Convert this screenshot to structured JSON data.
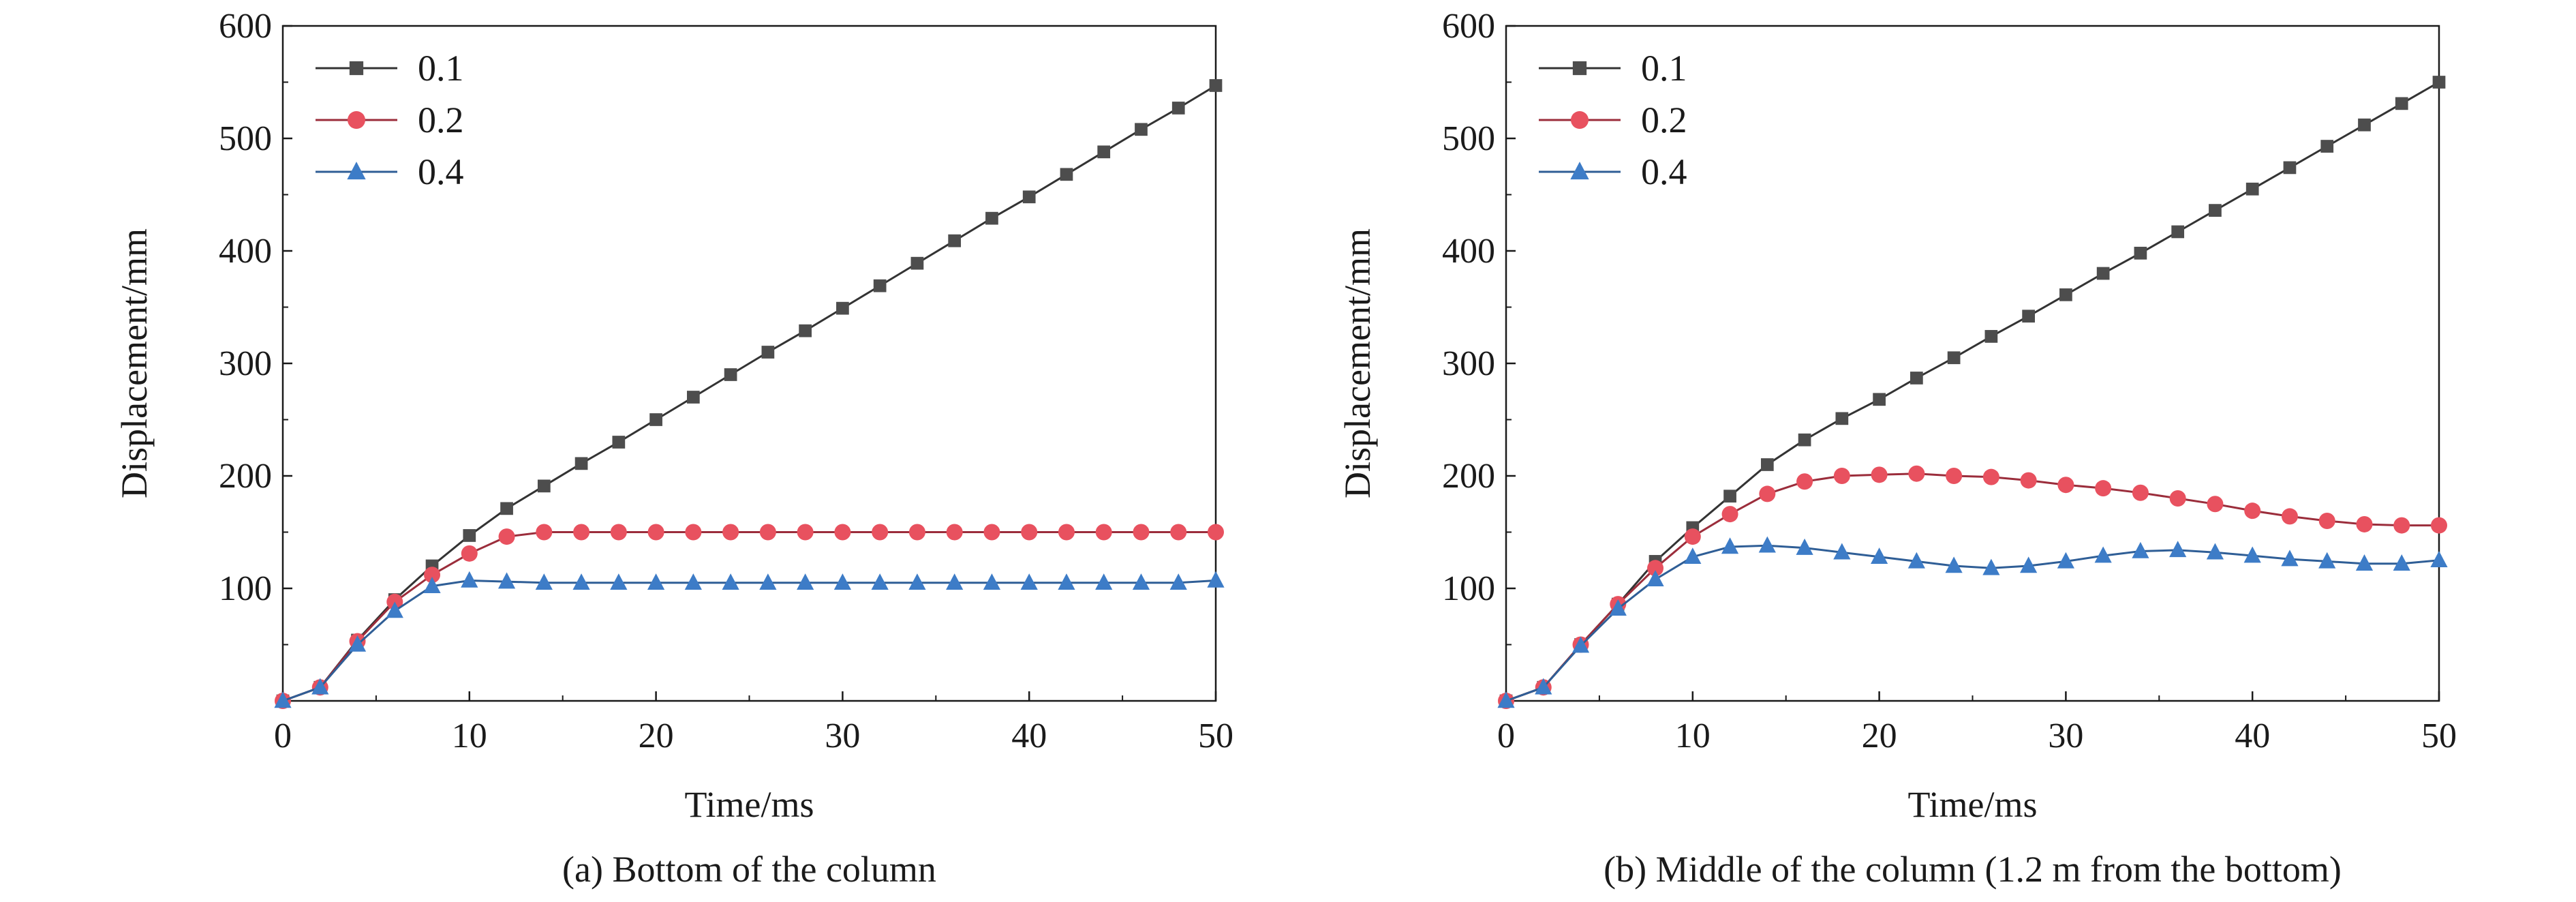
{
  "chart_data": [
    {
      "type": "line",
      "caption": "(a) Bottom of the column",
      "xlabel": "Time/ms",
      "ylabel": "Displacement/mm",
      "xlim": [
        0,
        50
      ],
      "ylim": [
        0,
        600
      ],
      "xticks": [
        0,
        10,
        20,
        30,
        40,
        50
      ],
      "yticks": [
        100,
        200,
        300,
        400,
        500,
        600
      ],
      "grid": false,
      "legend_position": "top-left",
      "series": [
        {
          "name": "0.1",
          "marker": "square",
          "color": "#4d4d4d",
          "line_color": "#333333",
          "x": [
            0,
            2,
            4,
            6,
            8,
            10,
            12,
            14,
            16,
            18,
            20,
            22,
            24,
            26,
            28,
            30,
            32,
            34,
            36,
            38,
            40,
            42,
            44,
            46,
            48,
            50
          ],
          "y": [
            0,
            12,
            54,
            90,
            120,
            147,
            171,
            191,
            211,
            230,
            250,
            270,
            290,
            310,
            329,
            349,
            369,
            389,
            409,
            429,
            448,
            468,
            488,
            508,
            527,
            547
          ]
        },
        {
          "name": "0.2",
          "marker": "circle",
          "color": "#e8515f",
          "line_color": "#9b2d3b",
          "x": [
            0,
            2,
            4,
            6,
            8,
            10,
            12,
            14,
            16,
            18,
            20,
            22,
            24,
            26,
            28,
            30,
            32,
            34,
            36,
            38,
            40,
            42,
            44,
            46,
            48,
            50
          ],
          "y": [
            0,
            12,
            53,
            88,
            112,
            131,
            146,
            150,
            150,
            150,
            150,
            150,
            150,
            150,
            150,
            150,
            150,
            150,
            150,
            150,
            150,
            150,
            150,
            150,
            150,
            150
          ]
        },
        {
          "name": "0.4",
          "marker": "triangle",
          "color": "#3d7cc7",
          "line_color": "#2f5e96",
          "x": [
            0,
            2,
            4,
            6,
            8,
            10,
            12,
            14,
            16,
            18,
            20,
            22,
            24,
            26,
            28,
            30,
            32,
            34,
            36,
            38,
            40,
            42,
            44,
            46,
            48,
            50
          ],
          "y": [
            0,
            12,
            50,
            80,
            102,
            107,
            106,
            105,
            105,
            105,
            105,
            105,
            105,
            105,
            105,
            105,
            105,
            105,
            105,
            105,
            105,
            105,
            105,
            105,
            105,
            107
          ]
        }
      ]
    },
    {
      "type": "line",
      "caption": "(b) Middle of the column (1.2 m from the bottom)",
      "xlabel": "Time/ms",
      "ylabel": "Displacement/mm",
      "xlim": [
        0,
        50
      ],
      "ylim": [
        0,
        600
      ],
      "xticks": [
        0,
        10,
        20,
        30,
        40,
        50
      ],
      "yticks": [
        100,
        200,
        300,
        400,
        500,
        600
      ],
      "grid": false,
      "legend_position": "top-left",
      "series": [
        {
          "name": "0.1",
          "marker": "square",
          "color": "#4d4d4d",
          "line_color": "#333333",
          "x": [
            0,
            2,
            4,
            6,
            8,
            10,
            12,
            14,
            16,
            18,
            20,
            22,
            24,
            26,
            28,
            30,
            32,
            34,
            36,
            38,
            40,
            42,
            44,
            46,
            48,
            50
          ],
          "y": [
            0,
            12,
            50,
            86,
            124,
            154,
            182,
            210,
            232,
            251,
            268,
            287,
            305,
            324,
            342,
            361,
            380,
            398,
            417,
            436,
            455,
            474,
            493,
            512,
            531,
            550
          ]
        },
        {
          "name": "0.2",
          "marker": "circle",
          "color": "#e8515f",
          "line_color": "#9b2d3b",
          "x": [
            0,
            2,
            4,
            6,
            8,
            10,
            12,
            14,
            16,
            18,
            20,
            22,
            24,
            26,
            28,
            30,
            32,
            34,
            36,
            38,
            40,
            42,
            44,
            46,
            48,
            50
          ],
          "y": [
            0,
            12,
            50,
            86,
            118,
            146,
            166,
            184,
            195,
            200,
            201,
            202,
            200,
            199,
            196,
            192,
            189,
            185,
            180,
            175,
            169,
            164,
            160,
            157,
            156,
            156
          ]
        },
        {
          "name": "0.4",
          "marker": "triangle",
          "color": "#3d7cc7",
          "line_color": "#2f5e96",
          "x": [
            0,
            2,
            4,
            6,
            8,
            10,
            12,
            14,
            16,
            18,
            20,
            22,
            24,
            26,
            28,
            30,
            32,
            34,
            36,
            38,
            40,
            42,
            44,
            46,
            48,
            50
          ],
          "y": [
            0,
            12,
            49,
            82,
            108,
            128,
            137,
            138,
            136,
            132,
            128,
            124,
            120,
            118,
            120,
            124,
            129,
            133,
            134,
            132,
            129,
            126,
            124,
            122,
            122,
            125
          ]
        }
      ]
    }
  ]
}
